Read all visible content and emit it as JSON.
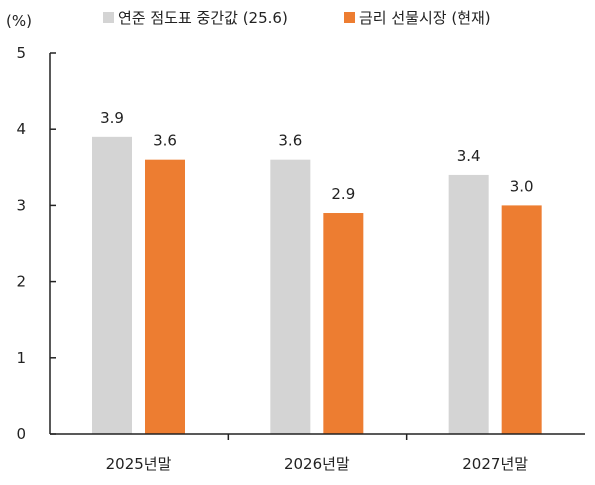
{
  "chart_data": {
    "type": "bar",
    "unit_label": "(%)",
    "title": "",
    "xlabel": "",
    "ylabel": "",
    "categories": [
      "2025년말",
      "2026년말",
      "2027년말"
    ],
    "series": [
      {
        "name": "연준 점도표 중간값 (25.6)",
        "values": [
          3.9,
          3.6,
          3.4
        ],
        "labels": [
          "3.9",
          "3.6",
          "3.4"
        ],
        "color": "#d4d4d4"
      },
      {
        "name": "금리 선물시장 (현재)",
        "values": [
          3.6,
          2.9,
          3.0
        ],
        "labels": [
          "3.6",
          "2.9",
          "3.0"
        ],
        "color": "#ed7d31"
      }
    ],
    "ylim": [
      0,
      5
    ],
    "yticks": [
      "0",
      "1",
      "2",
      "3",
      "4",
      "5"
    ],
    "grid": false,
    "legend": "top"
  }
}
